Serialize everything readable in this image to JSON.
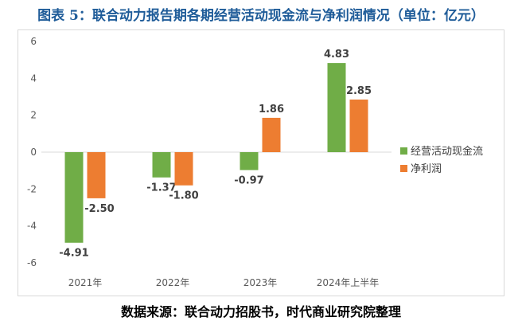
{
  "title": "图表 5：联合动力报告期各期经营活动现金流与净利润情况（单位：亿元）",
  "source": "数据来源：联合动力招股书，时代商业研究院整理",
  "chart_data": {
    "type": "bar",
    "categories": [
      "2021年",
      "2022年",
      "2023年",
      "2024年上半年"
    ],
    "series": [
      {
        "name": "经营活动现金流",
        "values": [
          -4.91,
          -1.37,
          -0.97,
          4.83
        ],
        "labels": [
          "-4.91",
          "-1.37",
          "-0.97",
          "4.83"
        ],
        "color": "#70ad47"
      },
      {
        "name": "净利润",
        "values": [
          -2.5,
          -1.8,
          1.86,
          2.85
        ],
        "labels": [
          "-2.50",
          "-1.80",
          "1.86",
          "2.85"
        ],
        "color": "#ed7d31"
      }
    ],
    "ylim": [
      -6,
      6
    ],
    "yticks": [
      6,
      4,
      2,
      0,
      -2,
      -4,
      -6
    ],
    "ytick_labels": [
      "6",
      "4",
      "2",
      "0",
      "-2",
      "-4",
      "-6"
    ],
    "grid": false,
    "legend_position": "right"
  }
}
